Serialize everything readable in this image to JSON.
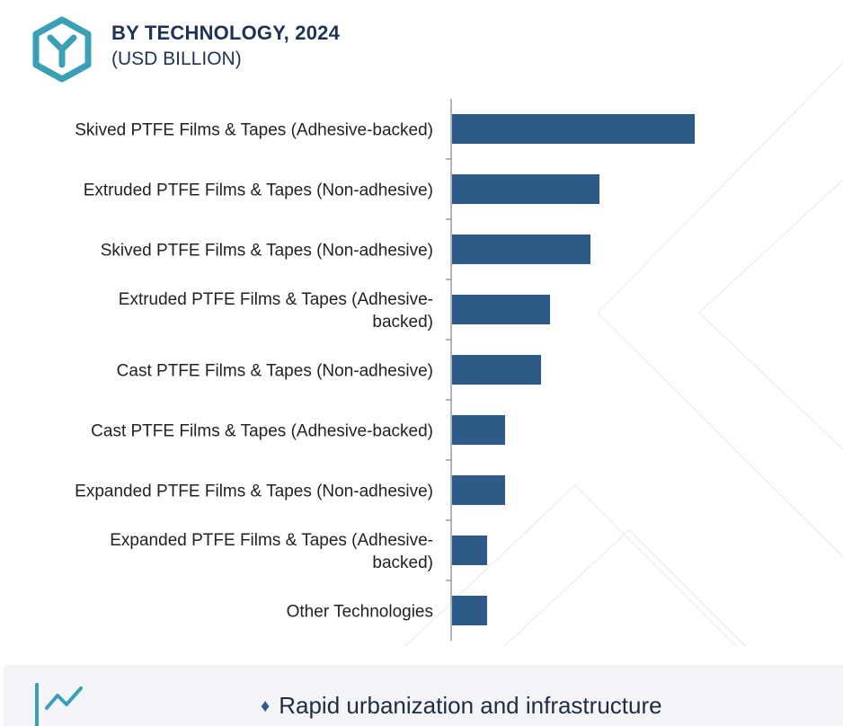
{
  "header": {
    "title": "BY TECHNOLOGY, 2024",
    "subtitle": "(USD BILLION)"
  },
  "colors": {
    "bar": "#2e5a87",
    "axis": "#9a9a9a",
    "title": "#1f3355",
    "logo": "#3aa0b5"
  },
  "chart_data": {
    "type": "bar",
    "orientation": "horizontal",
    "title": "BY TECHNOLOGY, 2024",
    "subtitle": "(USD BILLION)",
    "categories": [
      [
        "Skived PTFE Films & Tapes (Adhesive-backed)"
      ],
      [
        "Extruded PTFE Films & Tapes (Non-adhesive)"
      ],
      [
        "Skived PTFE Films & Tapes (Non-adhesive)"
      ],
      [
        "Extruded PTFE Films & Tapes (Adhesive-",
        "backed)"
      ],
      [
        "Cast PTFE Films & Tapes (Non-adhesive)"
      ],
      [
        "Cast PTFE Films & Tapes (Adhesive-backed)"
      ],
      [
        "Expanded PTFE Films & Tapes (Non-adhesive)"
      ],
      [
        "Expanded PTFE Films & Tapes (Adhesive-",
        "backed)"
      ],
      [
        "Other Technologies"
      ]
    ],
    "values": [
      2.7,
      1.64,
      1.54,
      1.09,
      0.99,
      0.59,
      0.59,
      0.39,
      0.39
    ],
    "xlim": [
      0,
      4.3
    ],
    "grid": false,
    "legend": "none"
  },
  "footer": {
    "icon": "trend-chart-icon",
    "bullet": "♦",
    "text": "Rapid urbanization and infrastructure"
  }
}
